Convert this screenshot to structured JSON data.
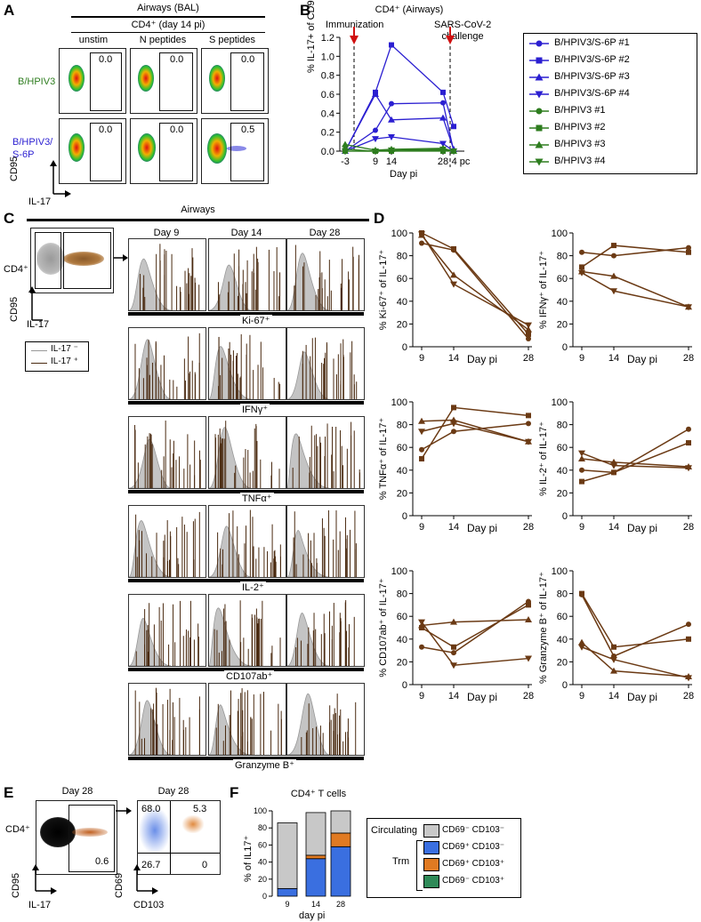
{
  "panels": {
    "A": "A",
    "B": "B",
    "C": "C",
    "D": "D",
    "E": "E",
    "F": "F"
  },
  "panelA": {
    "header1": "Airways (BAL)",
    "header2": "CD4⁺ (day 14 pi)",
    "columns": [
      "unstim",
      "N peptides",
      "S peptides"
    ],
    "rows": [
      {
        "label": "B/HPIV3",
        "color": "#2e7d1f",
        "values": [
          "0.0",
          "0.0",
          "0.0"
        ]
      },
      {
        "label": "B/HPIV3/\nS-6P",
        "color": "#2b1fd1",
        "values": [
          "0.0",
          "0.0",
          "0.5"
        ]
      }
    ],
    "yaxis": "CD95",
    "xaxis": "IL-17"
  },
  "panelB": {
    "title": "CD4⁺ (Airways)",
    "annotation_left": "Immunization",
    "annotation_right": "SARS-CoV-2\nchallenge",
    "legend": [
      "B/HPIV3/S-6P #1",
      "B/HPIV3/S-6P #2",
      "B/HPIV3/S-6P #3",
      "B/HPIV3/S-6P #4",
      "B/HPIV3 #1",
      "B/HPIV3 #2",
      "B/HPIV3 #3",
      "B/HPIV3 #4"
    ],
    "colors": {
      "s6p": "#2b1fd1",
      "hpiv3": "#2e7d1f",
      "arrow": "#d01010"
    }
  },
  "chart_data": [
    {
      "type": "line",
      "title": "CD4⁺ (Airways)",
      "xlabel": "Day pi",
      "ylabel": "% IL-17+ of CD95+ Foxp3-",
      "x_ticks": [
        "-3",
        "9",
        "14",
        "28",
        "4 pc"
      ],
      "ylim": [
        0,
        1.2
      ],
      "yticks": [
        "0.0",
        "0.2",
        "0.4",
        "0.6",
        "0.8",
        "1.0",
        "1.2"
      ],
      "series": [
        {
          "name": "B/HPIV3/S-6P #1",
          "x": [
            "-3",
            "9",
            "14",
            "28",
            "4 pc"
          ],
          "values": [
            0.0,
            0.22,
            0.5,
            0.51,
            0.0
          ]
        },
        {
          "name": "B/HPIV3/S-6P #2",
          "x": [
            "-3",
            "9",
            "14",
            "28",
            "4 pc"
          ],
          "values": [
            0.0,
            0.62,
            1.12,
            0.62,
            0.26
          ]
        },
        {
          "name": "B/HPIV3/S-6P #3",
          "x": [
            "-3",
            "9",
            "14",
            "28",
            "4 pc"
          ],
          "values": [
            0.0,
            0.6,
            0.33,
            0.35,
            0.02
          ]
        },
        {
          "name": "B/HPIV3/S-6P #4",
          "x": [
            "-3",
            "9",
            "14",
            "28",
            "4 pc"
          ],
          "values": [
            0.0,
            0.13,
            0.15,
            0.08,
            0.0
          ]
        },
        {
          "name": "B/HPIV3 #1",
          "x": [
            "-3",
            "9",
            "14",
            "28",
            "4 pc"
          ],
          "values": [
            0.02,
            0.0,
            0.0,
            0.01,
            0.0
          ]
        },
        {
          "name": "B/HPIV3 #2",
          "x": [
            "-3",
            "9",
            "14",
            "28",
            "4 pc"
          ],
          "values": [
            0.0,
            0.0,
            0.0,
            0.0,
            0.0
          ]
        },
        {
          "name": "B/HPIV3 #3",
          "x": [
            "-3",
            "9",
            "14",
            "28",
            "4 pc"
          ],
          "values": [
            0.07,
            0.01,
            0.02,
            0.03,
            0.0
          ]
        },
        {
          "name": "B/HPIV3 #4",
          "x": [
            "-3",
            "9",
            "14",
            "28",
            "4 pc"
          ],
          "values": [
            0.0,
            0.0,
            0.01,
            0.02,
            0.0
          ]
        }
      ]
    },
    {
      "type": "line",
      "xlabel": "Day pi",
      "ylabel": "% Ki-67⁺ of IL-17⁺",
      "x": [
        9,
        14,
        28
      ],
      "ylim": [
        0,
        100
      ],
      "series": [
        {
          "name": "circle",
          "values": [
            91,
            85,
            7
          ]
        },
        {
          "name": "square",
          "values": [
            100,
            86,
            11
          ]
        },
        {
          "name": "triangle",
          "values": [
            98,
            63,
            15
          ]
        },
        {
          "name": "inv-triangle",
          "values": [
            99,
            55,
            19
          ]
        }
      ]
    },
    {
      "type": "line",
      "xlabel": "Day pi",
      "ylabel": "% IFNγ⁺ of IL-17⁺",
      "x": [
        9,
        14,
        28
      ],
      "ylim": [
        0,
        100
      ],
      "series": [
        {
          "name": "circle",
          "values": [
            83,
            80,
            87
          ]
        },
        {
          "name": "square",
          "values": [
            70,
            89,
            83
          ]
        },
        {
          "name": "triangle",
          "values": [
            66,
            62,
            35
          ]
        },
        {
          "name": "inv-triangle",
          "values": [
            65,
            49,
            35
          ]
        }
      ]
    },
    {
      "type": "line",
      "xlabel": "Day pi",
      "ylabel": "% TNFα⁺ of IL-17⁺",
      "x": [
        9,
        14,
        28
      ],
      "ylim": [
        0,
        100
      ],
      "series": [
        {
          "name": "circle",
          "values": [
            58,
            74,
            81
          ]
        },
        {
          "name": "square",
          "values": [
            50,
            95,
            88
          ]
        },
        {
          "name": "triangle",
          "values": [
            83,
            84,
            65
          ]
        },
        {
          "name": "inv-triangle",
          "values": [
            74,
            81,
            65
          ]
        }
      ]
    },
    {
      "type": "line",
      "xlabel": "Day pi",
      "ylabel": "% IL-2⁺ of IL-17⁺",
      "x": [
        9,
        14,
        28
      ],
      "ylim": [
        0,
        100
      ],
      "series": [
        {
          "name": "circle",
          "values": [
            40,
            38,
            76
          ]
        },
        {
          "name": "square",
          "values": [
            30,
            38,
            64
          ]
        },
        {
          "name": "triangle",
          "values": [
            50,
            47,
            43
          ]
        },
        {
          "name": "inv-triangle",
          "values": [
            55,
            44,
            42
          ]
        }
      ]
    },
    {
      "type": "line",
      "xlabel": "Day pi",
      "ylabel": "% CD107ab⁺ of IL-17⁺",
      "x": [
        9,
        14,
        28
      ],
      "ylim": [
        0,
        100
      ],
      "series": [
        {
          "name": "circle",
          "values": [
            33,
            28,
            73
          ]
        },
        {
          "name": "square",
          "values": [
            50,
            33,
            70
          ]
        },
        {
          "name": "triangle",
          "values": [
            52,
            55,
            57
          ]
        },
        {
          "name": "inv-triangle",
          "values": [
            55,
            17,
            23
          ]
        }
      ]
    },
    {
      "type": "line",
      "xlabel": "Day pi",
      "ylabel": "% Granzyme B⁺ of IL-17⁺",
      "x": [
        9,
        14,
        28
      ],
      "ylim": [
        0,
        100
      ],
      "series": [
        {
          "name": "circle",
          "values": [
            79,
            25,
            53
          ]
        },
        {
          "name": "square",
          "values": [
            80,
            33,
            40
          ]
        },
        {
          "name": "triangle",
          "values": [
            37,
            12,
            7
          ]
        },
        {
          "name": "inv-triangle",
          "values": [
            33,
            22,
            6
          ]
        }
      ]
    },
    {
      "type": "bar",
      "title": "CD4⁺ T cells",
      "xlabel": "day pi",
      "ylabel": "% of IL17⁺",
      "categories": [
        "9",
        "14",
        "28"
      ],
      "ylim": [
        0,
        100
      ],
      "series": [
        {
          "name": "CD69⁻ CD103⁺",
          "values": [
            0,
            0,
            0
          ]
        },
        {
          "name": "CD69⁺ CD103⁺",
          "values": [
            0,
            4,
            16
          ]
        },
        {
          "name": "CD69⁺ CD103⁻",
          "values": [
            9,
            44,
            58
          ]
        },
        {
          "name": "CD69⁻ CD103⁻",
          "values": [
            77,
            50,
            26
          ]
        }
      ]
    }
  ],
  "panelC": {
    "header": "Airways",
    "gate_y": "CD4⁺",
    "axis_y": "CD95",
    "axis_x": "IL-17",
    "days": [
      "Day 9",
      "Day 14",
      "Day 28"
    ],
    "markers": [
      "Ki-67⁺",
      "IFNγ⁺",
      "TNFα⁺",
      "IL-2⁺",
      "CD107ab⁺",
      "Granzyme B⁺"
    ],
    "legend": [
      "IL-17 ⁻",
      "IL-17 ⁺"
    ]
  },
  "panelD": {
    "xlabel": "Day pi",
    "xticks": [
      "9",
      "14",
      "28"
    ],
    "yticks": [
      "0",
      "20",
      "40",
      "60",
      "80",
      "100"
    ],
    "line_color": "#6b3a14"
  },
  "panelE": {
    "day1": "Day 28",
    "day2": "Day 28",
    "gate_label": "CD4⁺",
    "axis_y1": "CD95",
    "axis_x1": "IL-17",
    "gate_value": "0.6",
    "axis_y2": "CD69",
    "axis_x2": "CD103",
    "quadrants": [
      "68.0",
      "5.3",
      "26.7",
      "0"
    ]
  },
  "panelF": {
    "title": "CD4⁺ T cells",
    "ylabel": "% of IL17⁺",
    "xlabel": "day pi",
    "yticks": [
      "0",
      "20",
      "40",
      "60",
      "80",
      "100"
    ],
    "legend_circulating": "Circulating",
    "legend_trm": "Trm",
    "legend_items": [
      "CD69⁻ CD103⁻",
      "CD69⁺ CD103⁻",
      "CD69⁺ CD103⁺",
      "CD69⁻ CD103⁺"
    ],
    "colors": [
      "#c8c8c8",
      "#3a6fe0",
      "#e07a22",
      "#2f8a58"
    ]
  }
}
